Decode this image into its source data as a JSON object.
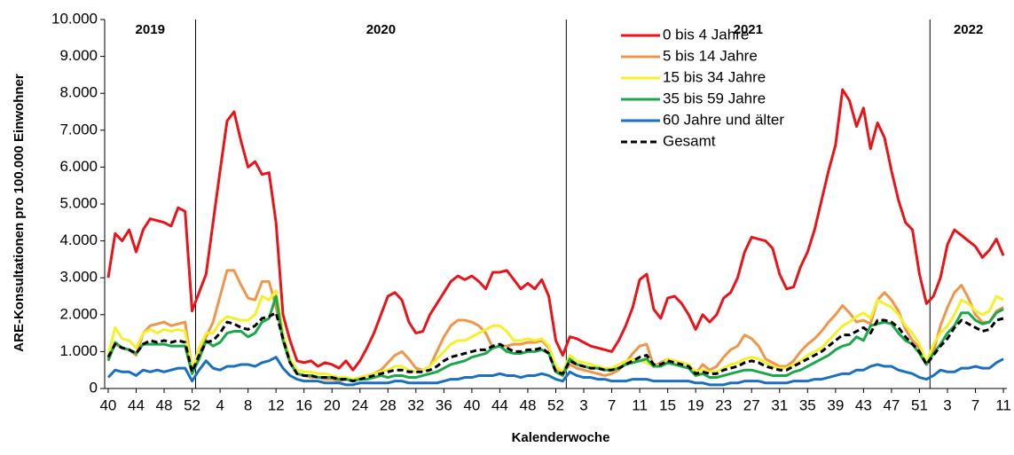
{
  "chart_data": {
    "type": "line",
    "y_label": "ARE-Konsultationen pro 100.000 Einwohner",
    "x_label": "Kalenderwoche",
    "annotations": [
      "2019",
      "2020",
      "2021",
      "2022"
    ],
    "categories": [
      "40",
      null,
      null,
      null,
      "44",
      null,
      null,
      null,
      "48",
      null,
      null,
      null,
      "52",
      null,
      null,
      null,
      "4",
      null,
      null,
      null,
      "8",
      null,
      null,
      null,
      "12",
      null,
      null,
      null,
      "16",
      null,
      null,
      null,
      "20",
      null,
      null,
      null,
      "24",
      null,
      null,
      null,
      "28",
      null,
      null,
      null,
      "32",
      null,
      null,
      null,
      "36",
      null,
      null,
      null,
      "40",
      null,
      null,
      null,
      "44",
      null,
      null,
      null,
      "48",
      null,
      null,
      null,
      "52",
      null,
      null,
      null,
      "3",
      null,
      null,
      null,
      "7",
      null,
      null,
      null,
      "11",
      null,
      null,
      null,
      "15",
      null,
      null,
      null,
      "19",
      null,
      null,
      null,
      "23",
      null,
      null,
      null,
      "27",
      null,
      null,
      null,
      "31",
      null,
      null,
      null,
      "35",
      null,
      null,
      null,
      "39",
      null,
      null,
      null,
      "43",
      null,
      null,
      null,
      "47",
      null,
      null,
      null,
      "51",
      null,
      null,
      null,
      "3",
      null,
      null,
      null,
      "7",
      null,
      null,
      null,
      "11"
    ],
    "ylim": [
      0,
      10000
    ],
    "yticks": [
      0,
      {
        "value": 1000,
        "label": "1.000"
      },
      {
        "value": 2000,
        "label": "2.000"
      },
      {
        "value": 3000,
        "label": "3.000"
      },
      {
        "value": 4000,
        "label": "4.000"
      },
      {
        "value": 5000,
        "label": "5.000"
      },
      {
        "value": 6000,
        "label": "6.000"
      },
      {
        "value": 7000,
        "label": "7.000"
      },
      {
        "value": 8000,
        "label": "8.000"
      },
      {
        "value": 9000,
        "label": "9.000"
      },
      {
        "value": 10000,
        "label": "10.000"
      }
    ],
    "grid": false,
    "legend_position": "top",
    "series": [
      {
        "name": "0 bis 4 Jahre",
        "color": "#e8141a",
        "dashed": false,
        "values": [
          3000,
          4200,
          4000,
          4300,
          3700,
          4300,
          4600,
          4550,
          4500,
          4400,
          4900,
          4800,
          2100,
          2600,
          3100,
          4500,
          5900,
          7250,
          7500,
          6700,
          6000,
          6150,
          5800,
          5850,
          4500,
          2000,
          1300,
          750,
          700,
          750,
          600,
          700,
          650,
          550,
          750,
          500,
          750,
          1100,
          1500,
          2000,
          2500,
          2600,
          2400,
          1800,
          1500,
          1550,
          2000,
          2300,
          2600,
          2900,
          3050,
          2950,
          3050,
          2900,
          2700,
          3150,
          3150,
          3200,
          2950,
          2700,
          2850,
          2700,
          2950,
          2500,
          1300,
          900,
          1400,
          1350,
          1250,
          1150,
          1100,
          1050,
          1000,
          1300,
          1700,
          2200,
          2950,
          3100,
          2150,
          1900,
          2450,
          2500,
          2300,
          2000,
          1600,
          2000,
          1800,
          2000,
          2450,
          2600,
          3000,
          3700,
          4100,
          4050,
          4000,
          3800,
          3100,
          2700,
          2750,
          3300,
          3700,
          4300,
          5100,
          5900,
          6600,
          8100,
          7800,
          7100,
          7600,
          6500,
          7200,
          6800,
          5900,
          5100,
          4500,
          4300,
          3100,
          2300,
          2500,
          3000,
          3900,
          4300,
          4150,
          4000,
          3850,
          3550,
          3750,
          4050,
          3600
        ]
      },
      {
        "name": "5 bis 14 Jahre",
        "color": "#f0964a",
        "dashed": false,
        "values": [
          800,
          1200,
          1100,
          1050,
          900,
          1500,
          1700,
          1750,
          1800,
          1700,
          1750,
          1800,
          500,
          1000,
          1400,
          1800,
          2500,
          3200,
          3200,
          2800,
          2450,
          2400,
          2900,
          2900,
          2200,
          1300,
          700,
          400,
          350,
          300,
          300,
          250,
          250,
          200,
          250,
          200,
          300,
          350,
          400,
          500,
          700,
          900,
          1000,
          800,
          550,
          500,
          600,
          1000,
          1400,
          1700,
          1850,
          1850,
          1800,
          1700,
          1500,
          1100,
          1150,
          1150,
          1200,
          1200,
          1250,
          1250,
          1300,
          1100,
          500,
          400,
          650,
          550,
          500,
          450,
          400,
          350,
          400,
          500,
          700,
          950,
          1150,
          1200,
          600,
          700,
          800,
          750,
          700,
          650,
          400,
          650,
          500,
          600,
          850,
          1050,
          1150,
          1450,
          1350,
          1150,
          800,
          700,
          600,
          600,
          750,
          1000,
          1200,
          1350,
          1550,
          1800,
          2000,
          2250,
          2050,
          1800,
          1850,
          1750,
          2400,
          2600,
          2400,
          2100,
          1600,
          1300,
          1100,
          700,
          1000,
          1700,
          2200,
          2600,
          2800,
          2450,
          2000,
          1800,
          1800,
          2100,
          2200
        ]
      },
      {
        "name": "15 bis 34 Jahre",
        "color": "#f4f02a",
        "dashed": false,
        "values": [
          900,
          1650,
          1350,
          1300,
          1100,
          1500,
          1600,
          1500,
          1600,
          1550,
          1600,
          1550,
          500,
          1100,
          1500,
          1500,
          1800,
          1950,
          1900,
          1850,
          1850,
          2000,
          2500,
          2400,
          2650,
          1500,
          800,
          500,
          450,
          450,
          400,
          400,
          350,
          300,
          300,
          250,
          300,
          350,
          400,
          450,
          500,
          600,
          600,
          500,
          450,
          500,
          600,
          800,
          1000,
          1200,
          1300,
          1300,
          1400,
          1500,
          1600,
          1700,
          1700,
          1550,
          1300,
          1300,
          1350,
          1300,
          1350,
          1150,
          600,
          450,
          900,
          750,
          700,
          650,
          600,
          550,
          550,
          650,
          750,
          800,
          750,
          700,
          600,
          650,
          800,
          750,
          700,
          650,
          450,
          500,
          450,
          450,
          550,
          650,
          700,
          800,
          850,
          800,
          700,
          600,
          550,
          550,
          650,
          750,
          900,
          1000,
          1100,
          1300,
          1500,
          1700,
          1800,
          1950,
          2050,
          1900,
          2400,
          2300,
          2200,
          2000,
          1700,
          1500,
          1200,
          700,
          1200,
          1500,
          1700,
          2000,
          2400,
          2300,
          2100,
          2000,
          2100,
          2500,
          2400
        ]
      },
      {
        "name": "35 bis 59 Jahre",
        "color": "#1aa84a",
        "dashed": false,
        "values": [
          750,
          1250,
          1100,
          1050,
          950,
          1200,
          1200,
          1200,
          1200,
          1150,
          1150,
          1150,
          400,
          800,
          1300,
          1150,
          1250,
          1500,
          1550,
          1550,
          1400,
          1500,
          1800,
          1900,
          2500,
          1300,
          700,
          400,
          350,
          350,
          300,
          300,
          300,
          250,
          250,
          200,
          250,
          250,
          300,
          350,
          300,
          350,
          350,
          300,
          300,
          350,
          400,
          450,
          550,
          650,
          700,
          750,
          850,
          900,
          950,
          1100,
          1150,
          1000,
          950,
          950,
          1000,
          1000,
          1050,
          950,
          450,
          350,
          800,
          650,
          600,
          550,
          550,
          500,
          500,
          550,
          650,
          700,
          750,
          800,
          600,
          600,
          700,
          650,
          600,
          550,
          350,
          400,
          300,
          300,
          350,
          400,
          450,
          500,
          500,
          450,
          400,
          350,
          350,
          350,
          450,
          500,
          600,
          700,
          800,
          900,
          1050,
          1150,
          1200,
          1400,
          1300,
          1700,
          1750,
          1800,
          1750,
          1500,
          1300,
          1200,
          950,
          650,
          950,
          1200,
          1500,
          1700,
          2050,
          2050,
          1850,
          1750,
          1800,
          2050,
          2150
        ]
      },
      {
        "name": "60 Jahre und älter",
        "color": "#1a6fbf",
        "dashed": false,
        "values": [
          300,
          500,
          450,
          450,
          350,
          500,
          450,
          500,
          450,
          500,
          550,
          550,
          200,
          500,
          750,
          550,
          500,
          600,
          600,
          650,
          650,
          600,
          700,
          750,
          850,
          550,
          350,
          250,
          200,
          200,
          200,
          150,
          150,
          150,
          100,
          100,
          150,
          150,
          150,
          150,
          150,
          200,
          200,
          150,
          150,
          150,
          150,
          150,
          200,
          250,
          250,
          300,
          300,
          350,
          350,
          350,
          400,
          350,
          350,
          300,
          350,
          350,
          400,
          350,
          250,
          200,
          450,
          350,
          300,
          300,
          250,
          250,
          200,
          200,
          200,
          250,
          250,
          250,
          200,
          200,
          200,
          200,
          200,
          200,
          150,
          150,
          100,
          100,
          100,
          150,
          150,
          200,
          200,
          200,
          150,
          150,
          150,
          150,
          200,
          200,
          200,
          250,
          250,
          300,
          350,
          400,
          400,
          500,
          500,
          600,
          650,
          600,
          600,
          500,
          450,
          400,
          300,
          250,
          350,
          500,
          450,
          450,
          550,
          550,
          600,
          550,
          550,
          700,
          800
        ]
      },
      {
        "name": "Gesamt",
        "color": "#000000",
        "dashed": true,
        "values": [
          850,
          1200,
          1100,
          1050,
          950,
          1200,
          1300,
          1250,
          1300,
          1250,
          1300,
          1250,
          450,
          900,
          1250,
          1300,
          1500,
          1800,
          1750,
          1650,
          1600,
          1700,
          1900,
          1950,
          2050,
          1350,
          700,
          400,
          350,
          350,
          300,
          300,
          300,
          250,
          250,
          200,
          250,
          300,
          350,
          400,
          450,
          500,
          500,
          450,
          450,
          450,
          500,
          600,
          750,
          850,
          900,
          950,
          1000,
          1050,
          1050,
          1150,
          1200,
          1100,
          1000,
          1000,
          1050,
          1050,
          1100,
          950,
          450,
          400,
          750,
          650,
          600,
          550,
          550,
          500,
          500,
          550,
          650,
          750,
          850,
          900,
          650,
          650,
          750,
          700,
          650,
          600,
          400,
          450,
          400,
          400,
          500,
          550,
          600,
          700,
          750,
          700,
          600,
          550,
          500,
          500,
          600,
          700,
          800,
          900,
          1000,
          1150,
          1300,
          1450,
          1450,
          1550,
          1650,
          1500,
          1850,
          1850,
          1800,
          1650,
          1400,
          1200,
          1000,
          650,
          900,
          1150,
          1350,
          1650,
          1850,
          1750,
          1650,
          1550,
          1600,
          1850,
          1900
        ]
      }
    ]
  }
}
